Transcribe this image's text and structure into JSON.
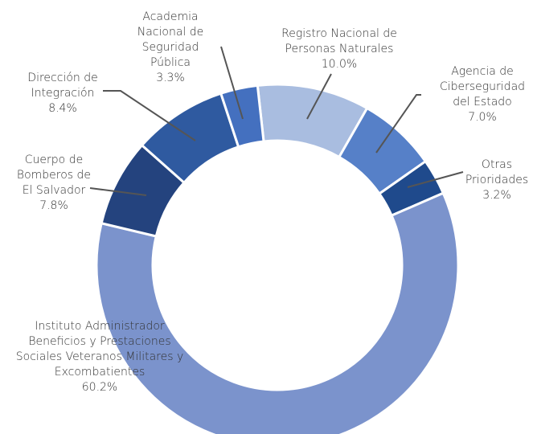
{
  "chart_data": {
    "type": "donut",
    "categories": [
      "Registro Nacional de\nPersonas Naturales",
      "Agencia de\nCiberseguridad\ndel Estado",
      "Otras\nPrioridades",
      "Instituto Administrador\nBeneficios y Prestaciones\nSociales Veteranos Militares y\nExcombatientes",
      "Cuerpo de\nBomberos de\nEl Salvador",
      "Dirección de\nIntegración",
      "Academia\nNacional de\nSeguridad\nPública"
    ],
    "values": [
      10.0,
      7.0,
      3.2,
      60.2,
      7.8,
      8.4,
      3.3
    ],
    "value_labels": [
      "10.0%",
      "7.0%",
      "3.2%",
      "60.2%",
      "7.8%",
      "8.4%",
      "3.3%"
    ],
    "colors": [
      "#a9bde0",
      "#5680c8",
      "#1f4a8c",
      "#7b93cc",
      "#24437e",
      "#2f5aa0",
      "#4470bf"
    ]
  }
}
